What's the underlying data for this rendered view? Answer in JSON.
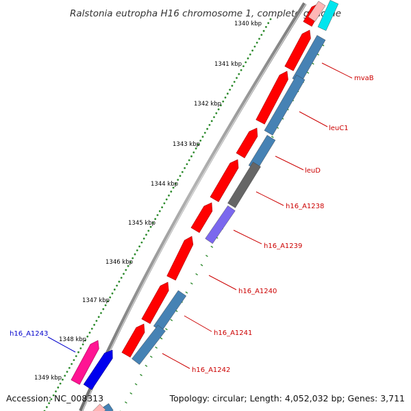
{
  "title": "Ralstonia eutropha H16 chromosome 1, complete genome",
  "footer": {
    "accession": "Accession: NC_008313",
    "summary": "Topology: circular; Length: 4,052,032 bp; Genes: 3,711"
  },
  "colors": {
    "backbone": "#8c8c8c",
    "tick_dots": "#2e8b2e",
    "forward_cds": "#ff0000",
    "reverse_cds": "#4682b4",
    "gene_label_reverse": "#cc0000",
    "gene_label_forward": "#0000cc"
  },
  "ticks": [
    {
      "label": "1340 kbp"
    },
    {
      "label": "1341 kbp"
    },
    {
      "label": "1342 kbp"
    },
    {
      "label": "1343 kbp"
    },
    {
      "label": "1344 kbp"
    },
    {
      "label": "1345 kbp"
    },
    {
      "label": "1346 kbp"
    },
    {
      "label": "1347 kbp"
    },
    {
      "label": "1348 kbp"
    },
    {
      "label": "1349 kbp"
    }
  ],
  "gene_labels": [
    {
      "text": "mvaB",
      "strand": "reverse"
    },
    {
      "text": "leuC1",
      "strand": "reverse"
    },
    {
      "text": "leuD",
      "strand": "reverse"
    },
    {
      "text": "h16_A1238",
      "strand": "reverse"
    },
    {
      "text": "h16_A1239",
      "strand": "reverse"
    },
    {
      "text": "h16_A1240",
      "strand": "reverse"
    },
    {
      "text": "h16_A1241",
      "strand": "reverse"
    },
    {
      "text": "h16_A1242",
      "strand": "reverse"
    },
    {
      "text": "h16_A1243",
      "strand": "forward"
    }
  ]
}
